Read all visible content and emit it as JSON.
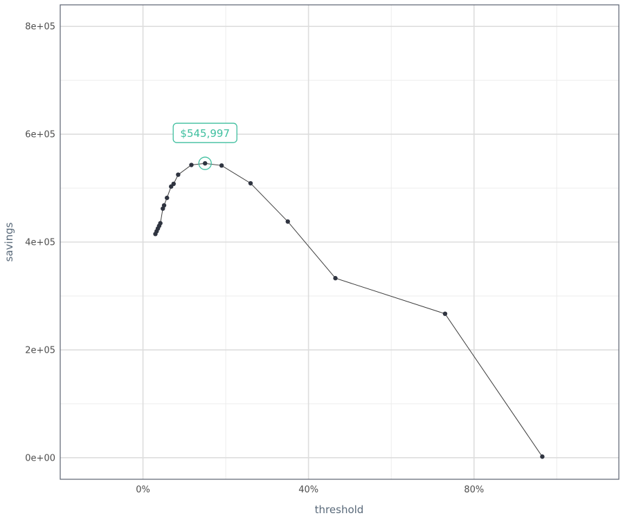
{
  "chart_data": {
    "type": "line",
    "xlabel": "threshold",
    "ylabel": "savings",
    "xlim": [
      -0.2,
      1.15
    ],
    "ylim": [
      -40000,
      840000
    ],
    "x_ticks": [
      0,
      0.4,
      0.8
    ],
    "x_tick_labels": [
      "0%",
      "40%",
      "80%"
    ],
    "y_ticks": [
      0,
      200000,
      400000,
      600000,
      800000
    ],
    "y_tick_labels": [
      "0e+00",
      "2e+05",
      "4e+05",
      "6e+05",
      "8e+05"
    ],
    "grid": true,
    "series": [
      {
        "x": [
          0.03,
          0.033,
          0.036,
          0.039,
          0.042,
          0.048,
          0.051,
          0.058,
          0.068,
          0.074,
          0.085,
          0.117,
          0.15,
          0.19,
          0.26,
          0.35,
          0.465,
          0.73,
          0.965
        ],
        "y": [
          415000,
          420000,
          425000,
          430000,
          435000,
          462000,
          468000,
          482000,
          503000,
          508000,
          525000,
          543000,
          545997,
          542000,
          509000,
          438000,
          333000,
          267000,
          2000
        ]
      }
    ],
    "highlight": {
      "x": 0.15,
      "y": 545997,
      "label": "$545,997",
      "color": "#3fbf9f"
    }
  }
}
